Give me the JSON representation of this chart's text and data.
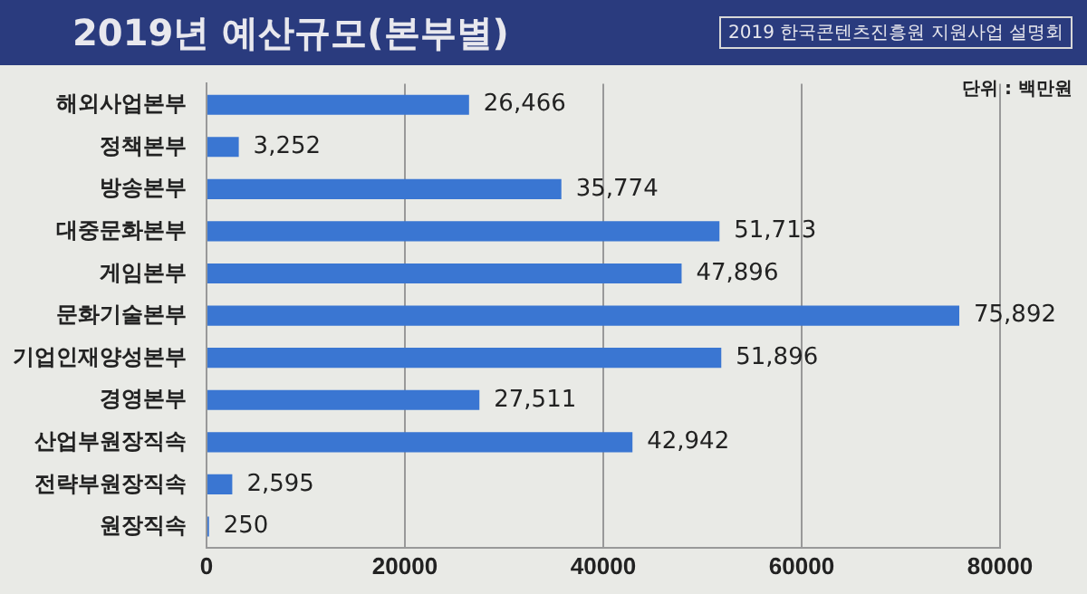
{
  "chart_data": {
    "type": "bar",
    "orientation": "horizontal",
    "title": "2019년 예산규모(본부별)",
    "annotations": [
      "2019 한국콘텐츠진흥원 지원사업 설명회",
      "단위 : 백만원"
    ],
    "categories": [
      "해외사업본부",
      "정책본부",
      "방송본부",
      "대중문화본부",
      "게임본부",
      "문화기술본부",
      "기업인재양성본부",
      "경영본부",
      "산업부원장직속",
      "전략부원장직속",
      "원장직속"
    ],
    "values": [
      26466,
      3252,
      35774,
      51713,
      47896,
      75892,
      51896,
      27511,
      42942,
      2595,
      250
    ],
    "value_labels": [
      "26,466",
      "3,252",
      "35,774",
      "51,713",
      "47,896",
      "75,892",
      "51,896",
      "27,511",
      "42,942",
      "2,595",
      "250"
    ],
    "color": "#3a76d2",
    "xlim": [
      0,
      80000
    ],
    "xticks": [
      0,
      20000,
      40000,
      60000,
      80000
    ],
    "grid": "x",
    "legend": false
  }
}
